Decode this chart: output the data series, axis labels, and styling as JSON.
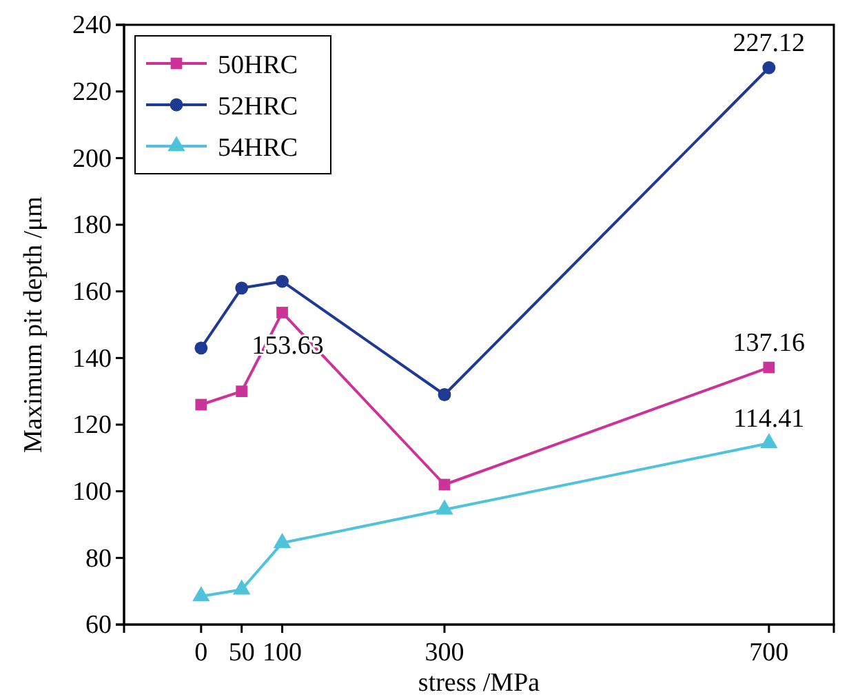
{
  "chart_data": {
    "type": "line",
    "xlabel": "stress /MPa",
    "ylabel": "Maximum pit depth /μm",
    "xlim": [
      -95,
      780
    ],
    "xticks": [
      0,
      50,
      100,
      300,
      700
    ],
    "ylim": [
      60,
      240
    ],
    "yticks": [
      60,
      80,
      100,
      120,
      140,
      160,
      180,
      200,
      220,
      240
    ],
    "x": [
      0,
      50,
      100,
      300,
      700
    ],
    "legend": "top left",
    "grid": false,
    "series": [
      {
        "name": "50HRC",
        "color": "#cc3399",
        "marker": "square",
        "values": [
          126,
          130,
          153.63,
          102,
          137.16
        ],
        "value_labels": [
          null,
          null,
          "153.63",
          null,
          "137.16"
        ]
      },
      {
        "name": "52HRC",
        "color": "#1f3a93",
        "marker": "circle",
        "values": [
          143,
          161,
          163,
          129,
          227.12
        ],
        "value_labels": [
          null,
          null,
          null,
          null,
          "227.12"
        ]
      },
      {
        "name": "54HRC",
        "color": "#4fc3d9",
        "marker": "triangle",
        "values": [
          68.5,
          70.5,
          84.5,
          94.5,
          114.41
        ],
        "value_labels": [
          null,
          null,
          null,
          null,
          "114.41"
        ]
      }
    ]
  }
}
